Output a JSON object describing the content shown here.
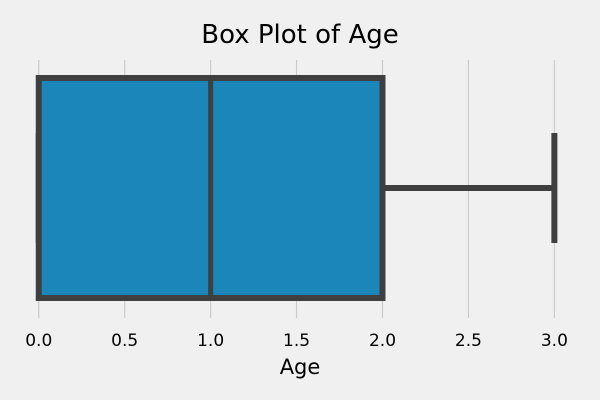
{
  "chart_data": {
    "type": "box",
    "title": "Box Plot of Age",
    "xlabel": "Age",
    "xlim": [
      -0.08,
      3.12
    ],
    "xticks": [
      0.0,
      0.5,
      1.0,
      1.5,
      2.0,
      2.5,
      3.0
    ],
    "xtick_labels": [
      "0.0",
      "0.5",
      "1.0",
      "1.5",
      "2.0",
      "2.5",
      "3.0"
    ],
    "grid": "vertical",
    "series": [
      {
        "min": 0,
        "q1": 0,
        "median": 1,
        "q3": 2,
        "max": 3
      }
    ],
    "colors": {
      "box_fill": "#1a86b9",
      "line": "#3f3f3f",
      "background": "#f0f0f0",
      "grid": "#cbcbcb"
    }
  }
}
